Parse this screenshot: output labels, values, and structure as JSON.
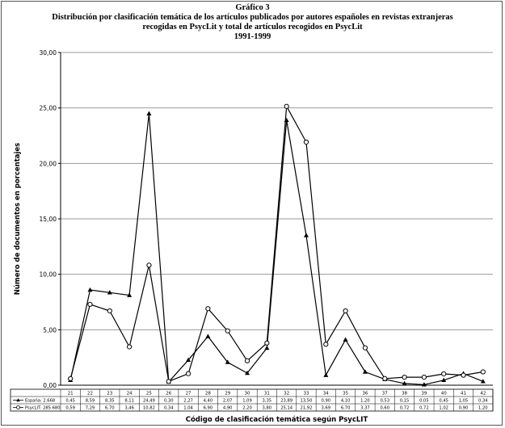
{
  "header": {
    "figure_label": "Gráfico 3",
    "title_line1": "Distribución por clasificación temática de los artículos publicados por autores españoles en revistas extranjeras",
    "title_line2": "recogidas en PsycLit y total de artículos recogidos en PsycLit",
    "title_line3": "1991-1999"
  },
  "colors": {
    "grid": "#9a9a9a",
    "axis": "#000000",
    "series_spain": "#000000",
    "series_total": "#000000",
    "marker_total_fill": "#ffffff"
  },
  "chart_data": {
    "type": "line",
    "title": "Gráfico 3",
    "subtitle": "Distribución por clasificación temática de los artículos publicados por autores españoles en revistas extranjeras recogidas en PsycLit y total de artículos recogidos en PsycLit 1991-1999",
    "xlabel": "Código de clasificación temática según PsycLIT",
    "ylabel": "Número de documentos en porcentajes",
    "ylim": [
      0,
      30
    ],
    "yticks": [
      "0,00",
      "5,00",
      "10,00",
      "15,00",
      "20,00",
      "25,00",
      "30,00"
    ],
    "grid": true,
    "legend": "table-bottom-left",
    "categories": [
      "21",
      "22",
      "23",
      "24",
      "25",
      "26",
      "27",
      "28",
      "29",
      "30",
      "31",
      "32",
      "33",
      "34",
      "35",
      "36",
      "37",
      "38",
      "39",
      "40",
      "41",
      "42"
    ],
    "series": [
      {
        "name": "España: 2.668",
        "marker": "filled-triangle",
        "values": [
          0.45,
          8.59,
          8.35,
          8.11,
          24.49,
          0.3,
          2.27,
          4.4,
          2.07,
          1.09,
          3.35,
          23.89,
          13.5,
          0.9,
          4.1,
          1.2,
          0.53,
          0.15,
          0.05,
          0.45,
          1.05,
          0.34
        ],
        "value_labels": [
          "0,45",
          "8,59",
          "8,35",
          "8,11",
          "24,49",
          "0,30",
          "2,27",
          "4,40",
          "2,07",
          "1,09",
          "3,35",
          "23,89",
          "13,50",
          "0,90",
          "4,10",
          "1,20",
          "0,53",
          "0,15",
          "0,05",
          "0,45",
          "1,05",
          "0,34"
        ]
      },
      {
        "name": "PsycLIT: 285.680",
        "marker": "open-circle",
        "values": [
          0.59,
          7.29,
          6.7,
          3.46,
          10.82,
          0.34,
          1.04,
          6.9,
          4.9,
          2.2,
          3.8,
          25.14,
          21.92,
          3.69,
          6.7,
          3.37,
          0.6,
          0.72,
          0.72,
          1.02,
          0.9,
          1.2
        ],
        "value_labels": [
          "0,59",
          "7,29",
          "6,70",
          "3,46",
          "10,82",
          "0,34",
          "1,04",
          "6,90",
          "4,90",
          "2,20",
          "3,80",
          "25,14",
          "21,92",
          "3,69",
          "6,70",
          "3,37",
          "0,60",
          "0,72",
          "0,72",
          "1,02",
          "0,90",
          "1,20"
        ]
      }
    ]
  }
}
